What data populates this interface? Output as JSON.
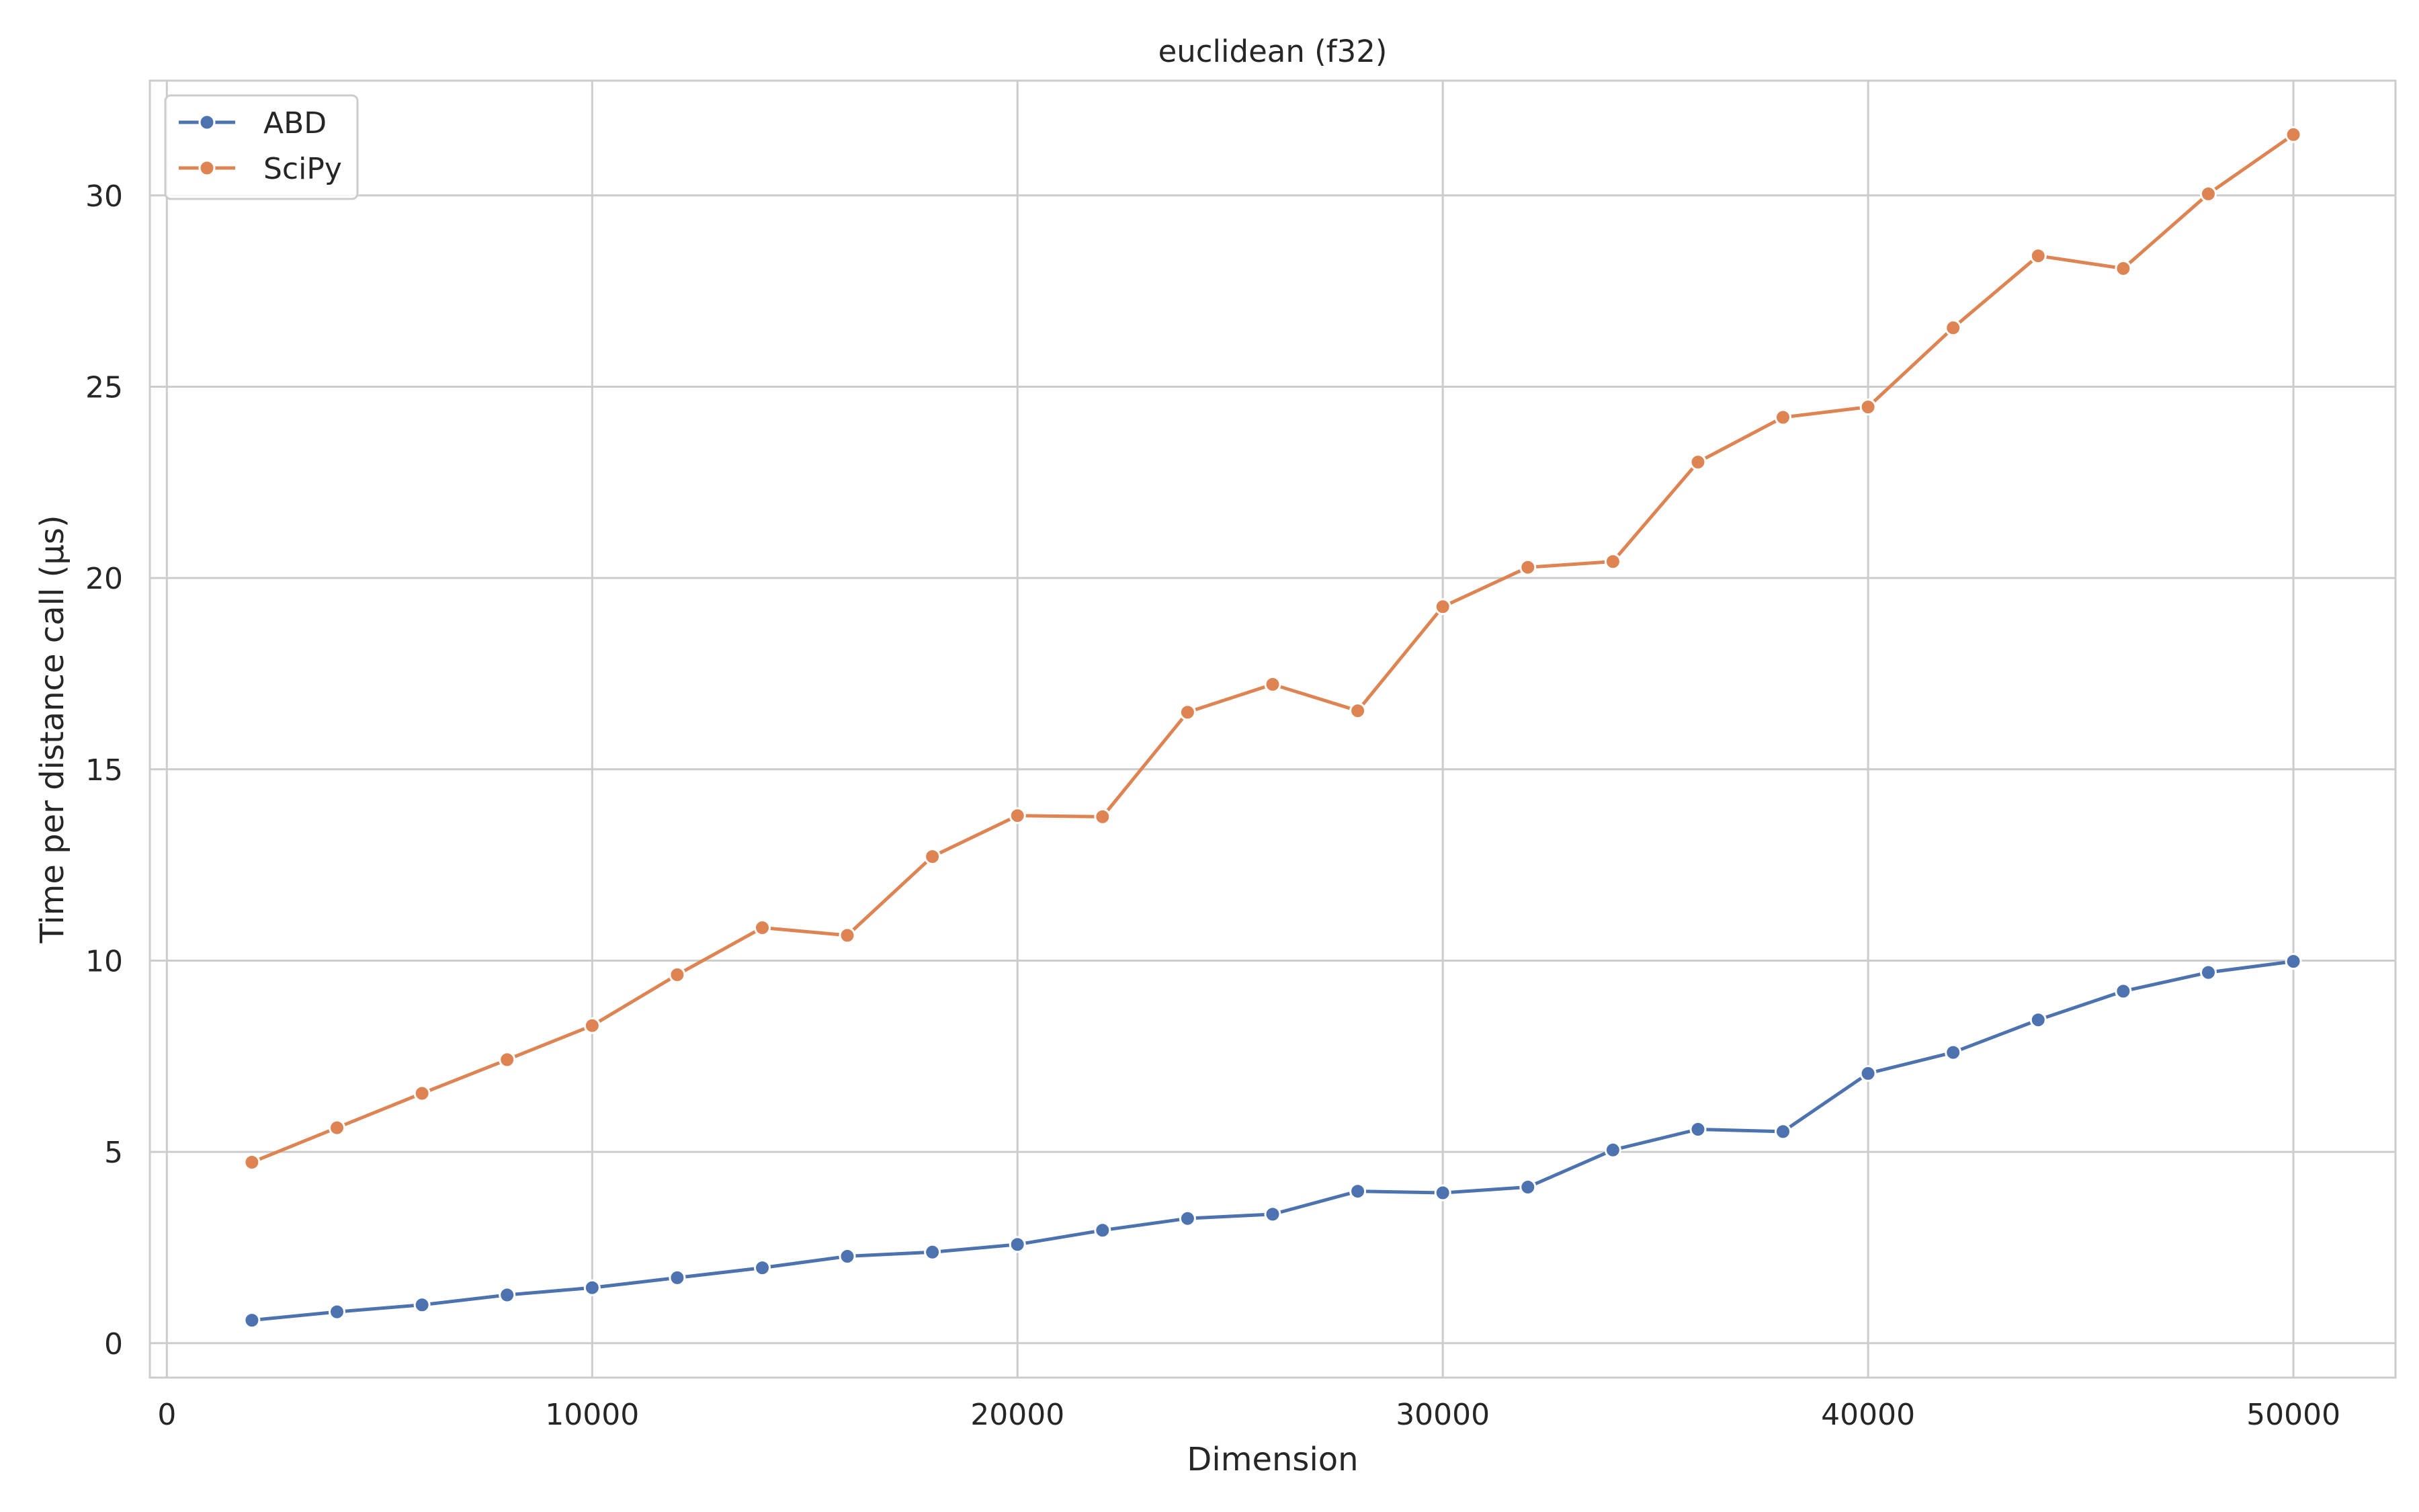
{
  "chart_data": {
    "type": "line",
    "title": "euclidean (f32)",
    "xlabel": "Dimension",
    "ylabel": "Time per distance call (µs)",
    "xlim": [
      -400,
      52400
    ],
    "ylim": [
      -0.9,
      33.0
    ],
    "xticks": [
      0,
      10000,
      20000,
      30000,
      40000,
      50000
    ],
    "yticks": [
      0,
      5,
      10,
      15,
      20,
      25,
      30
    ],
    "grid": true,
    "legend_position": "top-left",
    "x": [
      2000,
      4000,
      6000,
      8000,
      10000,
      12000,
      14000,
      16000,
      18000,
      20000,
      22000,
      24000,
      26000,
      28000,
      30000,
      32000,
      34000,
      36000,
      38000,
      40000,
      42000,
      44000,
      46000,
      48000,
      50000
    ],
    "series": [
      {
        "name": "ABD",
        "color": "#4c72b0",
        "values": [
          0.6,
          0.82,
          1.0,
          1.26,
          1.45,
          1.71,
          1.97,
          2.27,
          2.38,
          2.58,
          2.95,
          3.26,
          3.37,
          3.97,
          3.93,
          4.08,
          5.05,
          5.59,
          5.53,
          7.05,
          7.6,
          8.45,
          9.2,
          9.69,
          9.98
        ]
      },
      {
        "name": "SciPy",
        "color": "#dd8452",
        "values": [
          4.73,
          5.63,
          6.53,
          7.41,
          8.3,
          9.63,
          10.86,
          10.66,
          12.72,
          13.79,
          13.76,
          16.49,
          17.22,
          16.53,
          19.25,
          20.28,
          20.43,
          23.03,
          24.2,
          24.47,
          26.54,
          28.42,
          28.09,
          30.04,
          31.59
        ]
      }
    ]
  }
}
